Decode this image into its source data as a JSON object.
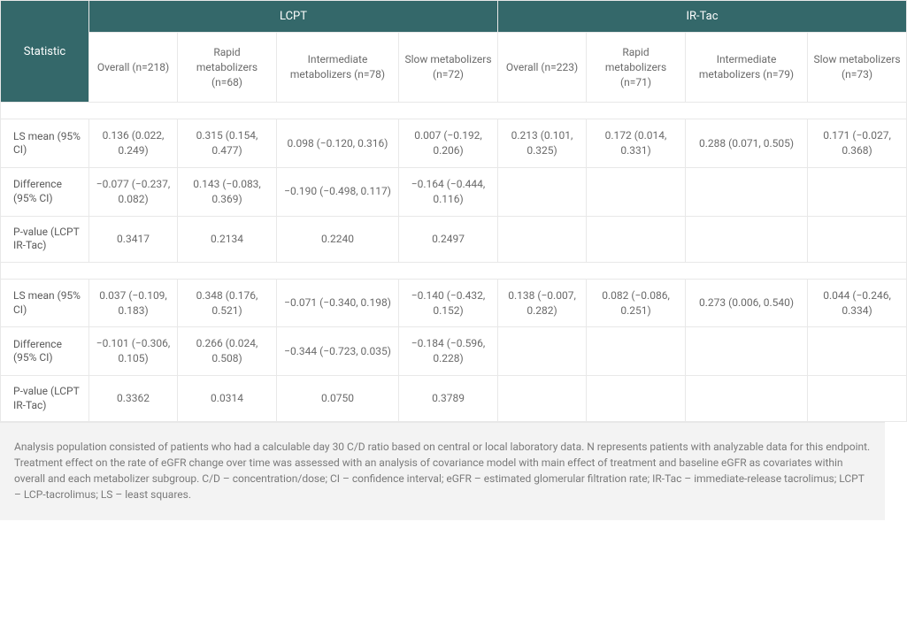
{
  "table": {
    "header": {
      "stat_label": "Statistic",
      "groups": [
        {
          "label": "LCPT",
          "cols": 4
        },
        {
          "label": "IR-Tac",
          "cols": 4
        }
      ],
      "subheaders": [
        "Overall (n=218)",
        "Rapid metabolizers (n=68)",
        "Intermediate metabolizers (n=78)",
        "Slow metabolizers (n=72)",
        "Overall (n=223)",
        "Rapid metabolizers (n=71)",
        "Intermediate metabolizers (n=79)",
        "Slow metabolizers (n=73)"
      ]
    },
    "blocks": [
      {
        "rows": [
          {
            "label": "LS mean (95% CI)",
            "cells": [
              "0.136 (0.022, 0.249)",
              "0.315 (0.154, 0.477)",
              "0.098 (−0.120, 0.316)",
              "0.007 (−0.192, 0.206)",
              "0.213 (0.101, 0.325)",
              "0.172 (0.014, 0.331)",
              "0.288 (0.071, 0.505)",
              "0.171 (−0.027, 0.368)"
            ]
          },
          {
            "label": "Difference (95% CI)",
            "cells": [
              "−0.077 (−0.237, 0.082)",
              "0.143 (−0.083, 0.369)",
              "−0.190 (−0.498, 0.117)",
              "−0.164 (−0.444, 0.116)",
              "",
              "",
              "",
              ""
            ]
          },
          {
            "label": "P-value (LCPT IR-Tac)",
            "cells": [
              "0.3417",
              "0.2134",
              "0.2240",
              "0.2497",
              "",
              "",
              "",
              ""
            ]
          }
        ]
      },
      {
        "rows": [
          {
            "label": "LS mean (95% CI)",
            "cells": [
              "0.037 (−0.109, 0.183)",
              "0.348 (0.176, 0.521)",
              "−0.071 (−0.340, 0.198)",
              "−0.140 (−0.432, 0.152)",
              "0.138 (−0.007, 0.282)",
              "0.082 (−0.086, 0.251)",
              "0.273 (0.006, 0.540)",
              "0.044 (−0.246, 0.334)"
            ]
          },
          {
            "label": "Difference (95% CI)",
            "cells": [
              "−0.101 (−0.306, 0.105)",
              "0.266 (0.024, 0.508)",
              "−0.344 (−0.723, 0.035)",
              "−0.184 (−0.596, 0.228)",
              "",
              "",
              "",
              ""
            ]
          },
          {
            "label": "P-value (LCPT IR-Tac)",
            "cells": [
              "0.3362",
              "0.0314",
              "0.0750",
              "0.3789",
              "",
              "",
              "",
              ""
            ]
          }
        ]
      }
    ]
  },
  "footnote": "Analysis population consisted of patients who had a calculable day 30 C/D ratio based on central or local laboratory data. N represents patients with analyzable data for this endpoint. Treatment effect on the rate of eGFR change over time was assessed with an analysis of covariance model with main effect of treatment and baseline eGFR as covariates within overall and each metabolizer subgroup. C/D – concentration/dose; CI – confidence interval; eGFR – estimated glomerular filtration rate; IR-Tac – immediate-release tacrolimus; LCPT – LCP-tacrolimus; LS – least squares.",
  "style": {
    "header_bg": "#34686a",
    "header_fg": "#ffffff",
    "border_color": "#e8e8e8",
    "body_text": "#6a6a6a",
    "footnote_bg": "#f3f3f3",
    "page_bg": "#ffffff",
    "font_size_header": 13,
    "font_size_body": 12
  }
}
